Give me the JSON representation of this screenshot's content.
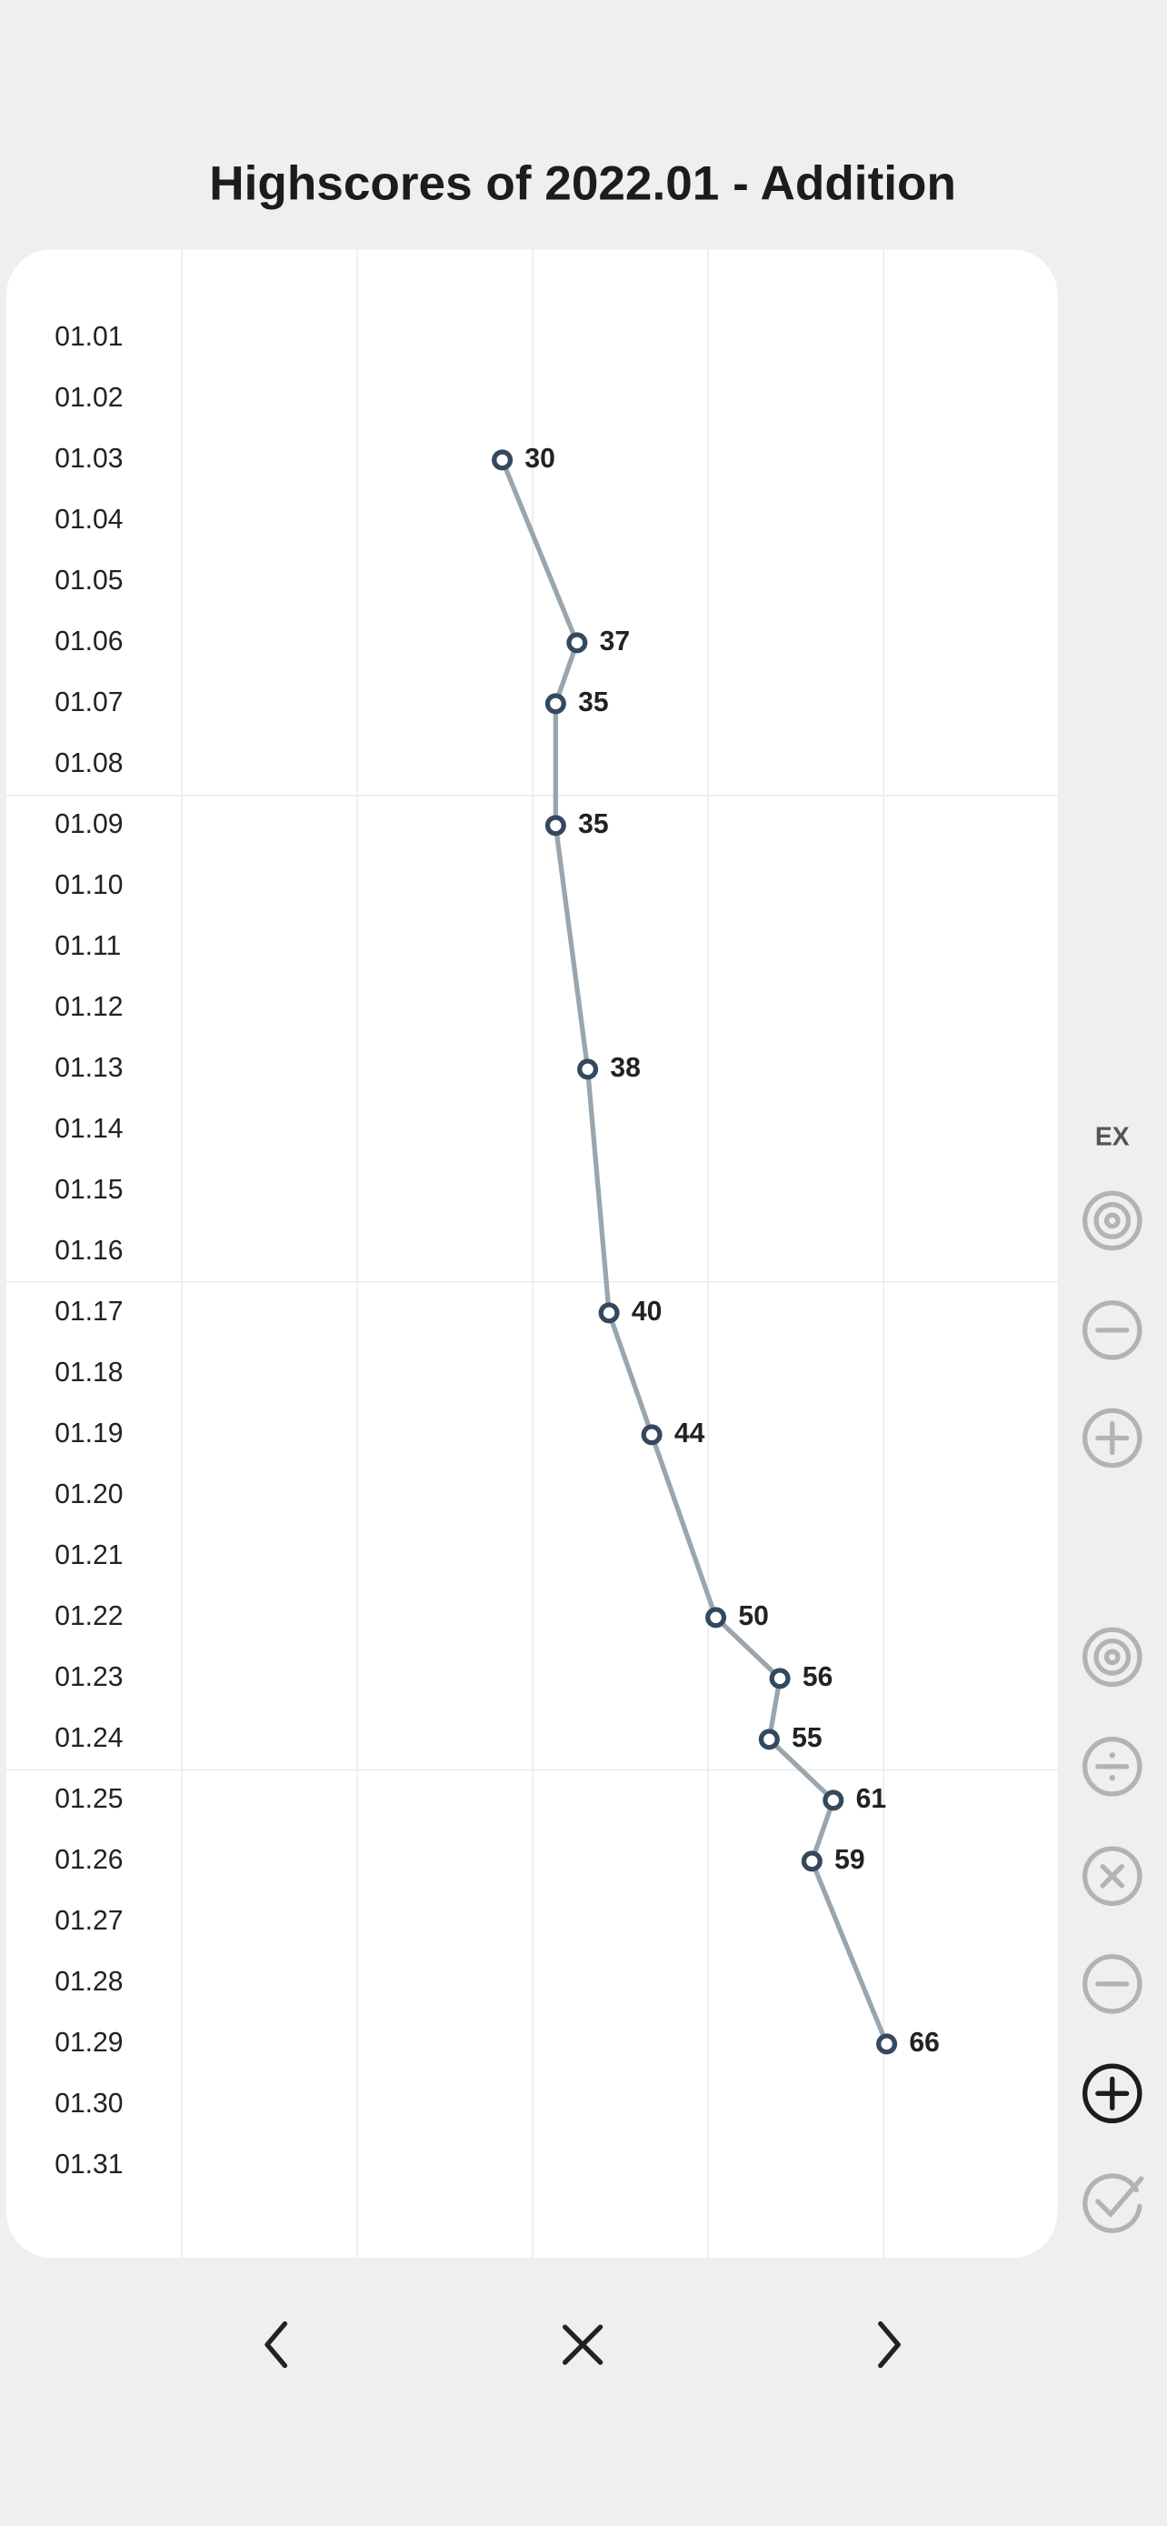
{
  "chart_data": {
    "type": "line",
    "title": "Highscores of 2022.01 - Addition",
    "categories": [
      "01.01",
      "01.02",
      "01.03",
      "01.04",
      "01.05",
      "01.06",
      "01.07",
      "01.08",
      "01.09",
      "01.10",
      "01.11",
      "01.12",
      "01.13",
      "01.14",
      "01.15",
      "01.16",
      "01.17",
      "01.18",
      "01.19",
      "01.20",
      "01.21",
      "01.22",
      "01.23",
      "01.24",
      "01.25",
      "01.26",
      "01.27",
      "01.28",
      "01.29",
      "01.30",
      "01.31"
    ],
    "series": [
      {
        "color": "#9aa6ad",
        "marker_color": "#34495e",
        "values": [
          null,
          null,
          30,
          null,
          null,
          37,
          35,
          null,
          35,
          null,
          null,
          null,
          38,
          null,
          null,
          null,
          40,
          null,
          44,
          null,
          null,
          50,
          56,
          55,
          61,
          59,
          null,
          null,
          66,
          null,
          null
        ]
      }
    ],
    "xlim": [
      0,
      82
    ]
  },
  "side_label": "EX"
}
